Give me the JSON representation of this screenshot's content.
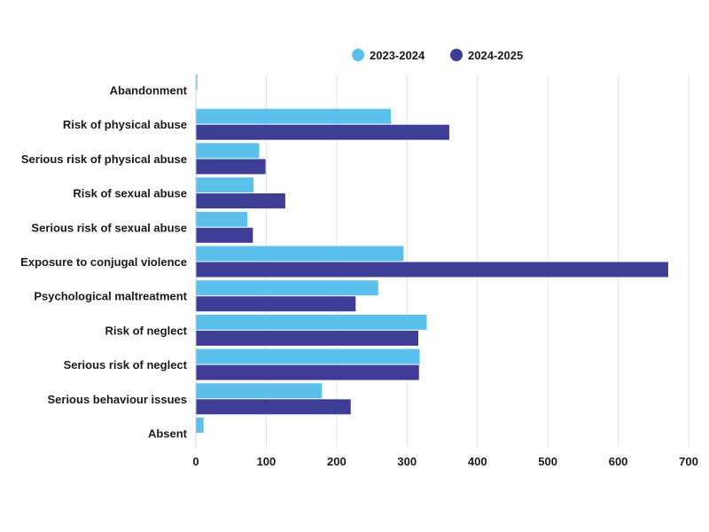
{
  "chart_data": {
    "type": "bar",
    "orientation": "horizontal",
    "categories": [
      "Abandonment",
      "Risk of physical abuse",
      "Serious risk of physical abuse",
      "Risk of sexual abuse",
      "Serious risk of sexual abuse",
      "Exposure to conjugal violence",
      "Psychological maltreatment",
      "Risk of neglect",
      "Serious risk of neglect",
      "Serious behaviour issues",
      "Absent"
    ],
    "series": [
      {
        "name": "2023-2024",
        "color": "#5bc0eb",
        "values": [
          2,
          277,
          90,
          82,
          73,
          295,
          259,
          328,
          318,
          179,
          11
        ]
      },
      {
        "name": "2024-2025",
        "color": "#3d3d96",
        "values": [
          null,
          360,
          99,
          127,
          81,
          671,
          227,
          316,
          317,
          220,
          null
        ]
      }
    ],
    "xlim": [
      0,
      700
    ],
    "xticks": [
      0,
      100,
      200,
      300,
      400,
      500,
      600,
      700
    ],
    "grid": true,
    "legend_position": "top-right",
    "title": "",
    "xlabel": "",
    "ylabel": ""
  }
}
